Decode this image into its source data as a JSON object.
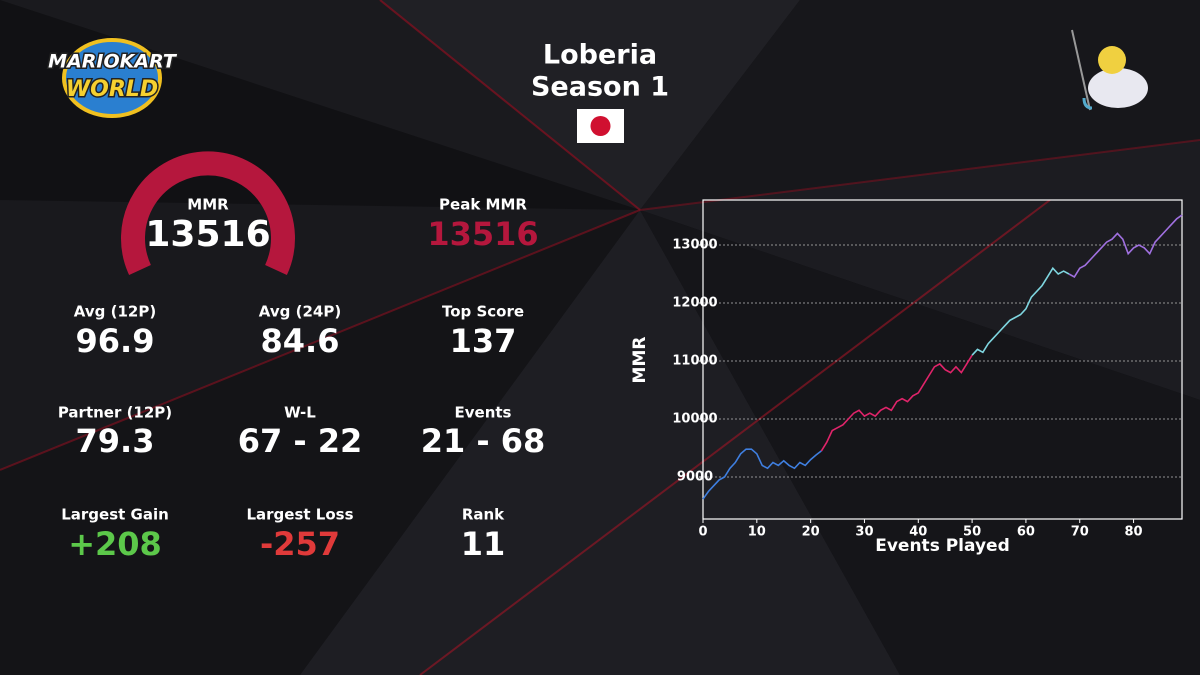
{
  "logo": {
    "line1": "MARIOKART",
    "line2": "WORLD"
  },
  "header": {
    "title": "Loberia",
    "subtitle": "Season 1"
  },
  "stats": [
    {
      "label": "MMR",
      "value": 13516,
      "color": "#ffffff",
      "size": "big"
    },
    {
      "label": "Peak MMR",
      "value": 13516,
      "color": "#b5173d"
    },
    {
      "label": "Avg (12P)",
      "value": 96.9,
      "color": "#ffffff"
    },
    {
      "label": "Avg (24P)",
      "value": 84.6,
      "color": "#ffffff"
    },
    {
      "label": "Top Score",
      "value": 137,
      "color": "#ffffff"
    },
    {
      "label": "Partner (12P)",
      "value": 79.3,
      "color": "#ffffff"
    },
    {
      "label": "W-L",
      "value": "67 - 22",
      "color": "#ffffff"
    },
    {
      "label": "Events",
      "value": "21 - 68",
      "color": "#ffffff"
    },
    {
      "label": "Largest Gain",
      "value": "+208",
      "color": "#5cc84a"
    },
    {
      "label": "Largest Loss",
      "value": -257,
      "color": "#e03a3a"
    },
    {
      "label": "Rank",
      "value": 11,
      "color": "#ffffff"
    }
  ],
  "chart_data": {
    "type": "line",
    "x_label": "Events Played",
    "y_label": "MMR",
    "xlim": [
      0,
      89
    ],
    "ylim": [
      8276,
      13776
    ],
    "xticks": [
      0,
      10,
      20,
      30,
      40,
      50,
      60,
      70,
      80
    ],
    "yticks": [
      9000,
      10000,
      11000,
      12000,
      13000
    ],
    "grid": true,
    "series": [
      {
        "color": "#3f7fe0",
        "x": [
          0,
          1,
          2,
          3,
          4,
          5,
          6,
          7,
          8,
          9,
          10,
          11,
          12,
          13,
          14,
          15,
          16,
          17,
          18,
          19,
          20,
          21,
          22
        ],
        "values": [
          8620,
          8750,
          8850,
          8950,
          9000,
          9150,
          9250,
          9400,
          9480,
          9480,
          9400,
          9200,
          9150,
          9250,
          9200,
          9280,
          9200,
          9150,
          9250,
          9200,
          9300,
          9380,
          9450
        ]
      },
      {
        "color": "#e0246a",
        "x": [
          22,
          23,
          24,
          25,
          26,
          27,
          28,
          29,
          30,
          31,
          32,
          33,
          34,
          35,
          36,
          37,
          38,
          39,
          40,
          41,
          42,
          43,
          44,
          45,
          46,
          47,
          48,
          49,
          50
        ],
        "values": [
          9450,
          9600,
          9800,
          9850,
          9900,
          10000,
          10100,
          10150,
          10050,
          10100,
          10050,
          10150,
          10200,
          10150,
          10300,
          10350,
          10300,
          10400,
          10450,
          10600,
          10750,
          10900,
          10950,
          10850,
          10800,
          10900,
          10800,
          10950,
          11100
        ]
      },
      {
        "color": "#7fd6e0",
        "x": [
          50,
          51,
          52,
          53,
          54,
          55,
          56,
          57,
          58,
          59,
          60,
          61,
          62,
          63,
          64,
          65,
          66,
          67,
          68
        ],
        "values": [
          11100,
          11200,
          11150,
          11300,
          11400,
          11500,
          11600,
          11700,
          11750,
          11800,
          11900,
          12100,
          12200,
          12300,
          12450,
          12600,
          12500,
          12550,
          12500
        ]
      },
      {
        "color": "#a070e0",
        "x": [
          68,
          69,
          70,
          71,
          72,
          73,
          74,
          75,
          76,
          77,
          78,
          79,
          80,
          81,
          82,
          83,
          84,
          85,
          86,
          87,
          88,
          89
        ],
        "values": [
          12500,
          12450,
          12600,
          12650,
          12750,
          12850,
          12950,
          13050,
          13100,
          13200,
          13100,
          12850,
          12950,
          13000,
          12950,
          12850,
          13050,
          13150,
          13250,
          13350,
          13450,
          13516
        ]
      }
    ]
  }
}
